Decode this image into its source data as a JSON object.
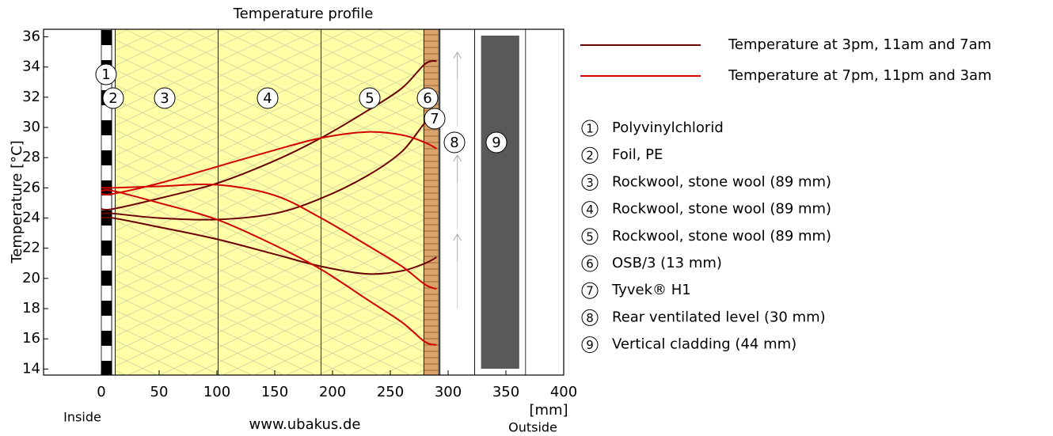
{
  "chart_data": {
    "type": "line",
    "title": "Temperature profile",
    "ylabel": "Temperature  [°C]",
    "xlabel": "[mm]",
    "left_label": "Inside",
    "right_label": "Outside",
    "source": "www.ubakus.de",
    "xlim": [
      -50,
      400
    ],
    "ylim": [
      13.6,
      36.5
    ],
    "xticks": [
      0,
      50,
      100,
      150,
      200,
      250,
      300,
      350,
      400
    ],
    "yticks": [
      14,
      16,
      18,
      20,
      22,
      24,
      26,
      28,
      30,
      32,
      34,
      36
    ],
    "x": [
      0,
      10,
      50,
      100,
      150,
      190,
      230,
      260,
      280,
      290
    ],
    "series": [
      {
        "name": "Temperature at 3pm, 11am and 7am",
        "color": "#6b0000",
        "values": [
          [
            24.6,
            24.6,
            25.3,
            26.3,
            27.8,
            29.3,
            31.1,
            32.6,
            34.2,
            34.4
          ],
          [
            24.3,
            24.3,
            24.0,
            23.9,
            24.3,
            25.3,
            26.8,
            28.4,
            30.3,
            30.7
          ],
          [
            24.0,
            24.0,
            23.4,
            22.6,
            21.6,
            20.8,
            20.3,
            20.5,
            21.0,
            21.4
          ]
        ]
      },
      {
        "name": "Temperature at 7pm, 11pm and 3am",
        "color": "#d40000",
        "values": [
          [
            25.6,
            25.6,
            26.3,
            27.4,
            28.5,
            29.3,
            29.7,
            29.5,
            29.0,
            28.6
          ],
          [
            26.0,
            26.0,
            26.1,
            26.2,
            25.5,
            24.0,
            22.2,
            20.8,
            19.6,
            19.3
          ],
          [
            25.8,
            25.8,
            25.0,
            23.9,
            22.2,
            20.6,
            18.6,
            17.1,
            15.8,
            15.6
          ]
        ]
      }
    ],
    "layers": [
      {
        "number": "1",
        "name": "Polyvinylchlorid",
        "from": 0,
        "to": 9
      },
      {
        "number": "2",
        "name": "Foil, PE",
        "from": 9,
        "to": 12
      },
      {
        "number": "3",
        "name": "Rockwool, stone wool (89 mm)",
        "from": 12,
        "to": 101
      },
      {
        "number": "4",
        "name": "Rockwool, stone wool (89 mm)",
        "from": 101,
        "to": 190
      },
      {
        "number": "5",
        "name": "Rockwool, stone wool (89 mm)",
        "from": 190,
        "to": 279
      },
      {
        "number": "6",
        "name": "OSB/3 (13 mm)",
        "from": 279,
        "to": 292
      },
      {
        "number": "7",
        "name": "Tyvek® H1",
        "from": 292,
        "to": 293
      },
      {
        "number": "8",
        "name": "Rear ventilated level (30 mm)",
        "from": 293,
        "to": 323
      },
      {
        "number": "9",
        "name": "Vertical cladding (44 mm)",
        "from": 323,
        "to": 367
      }
    ]
  }
}
